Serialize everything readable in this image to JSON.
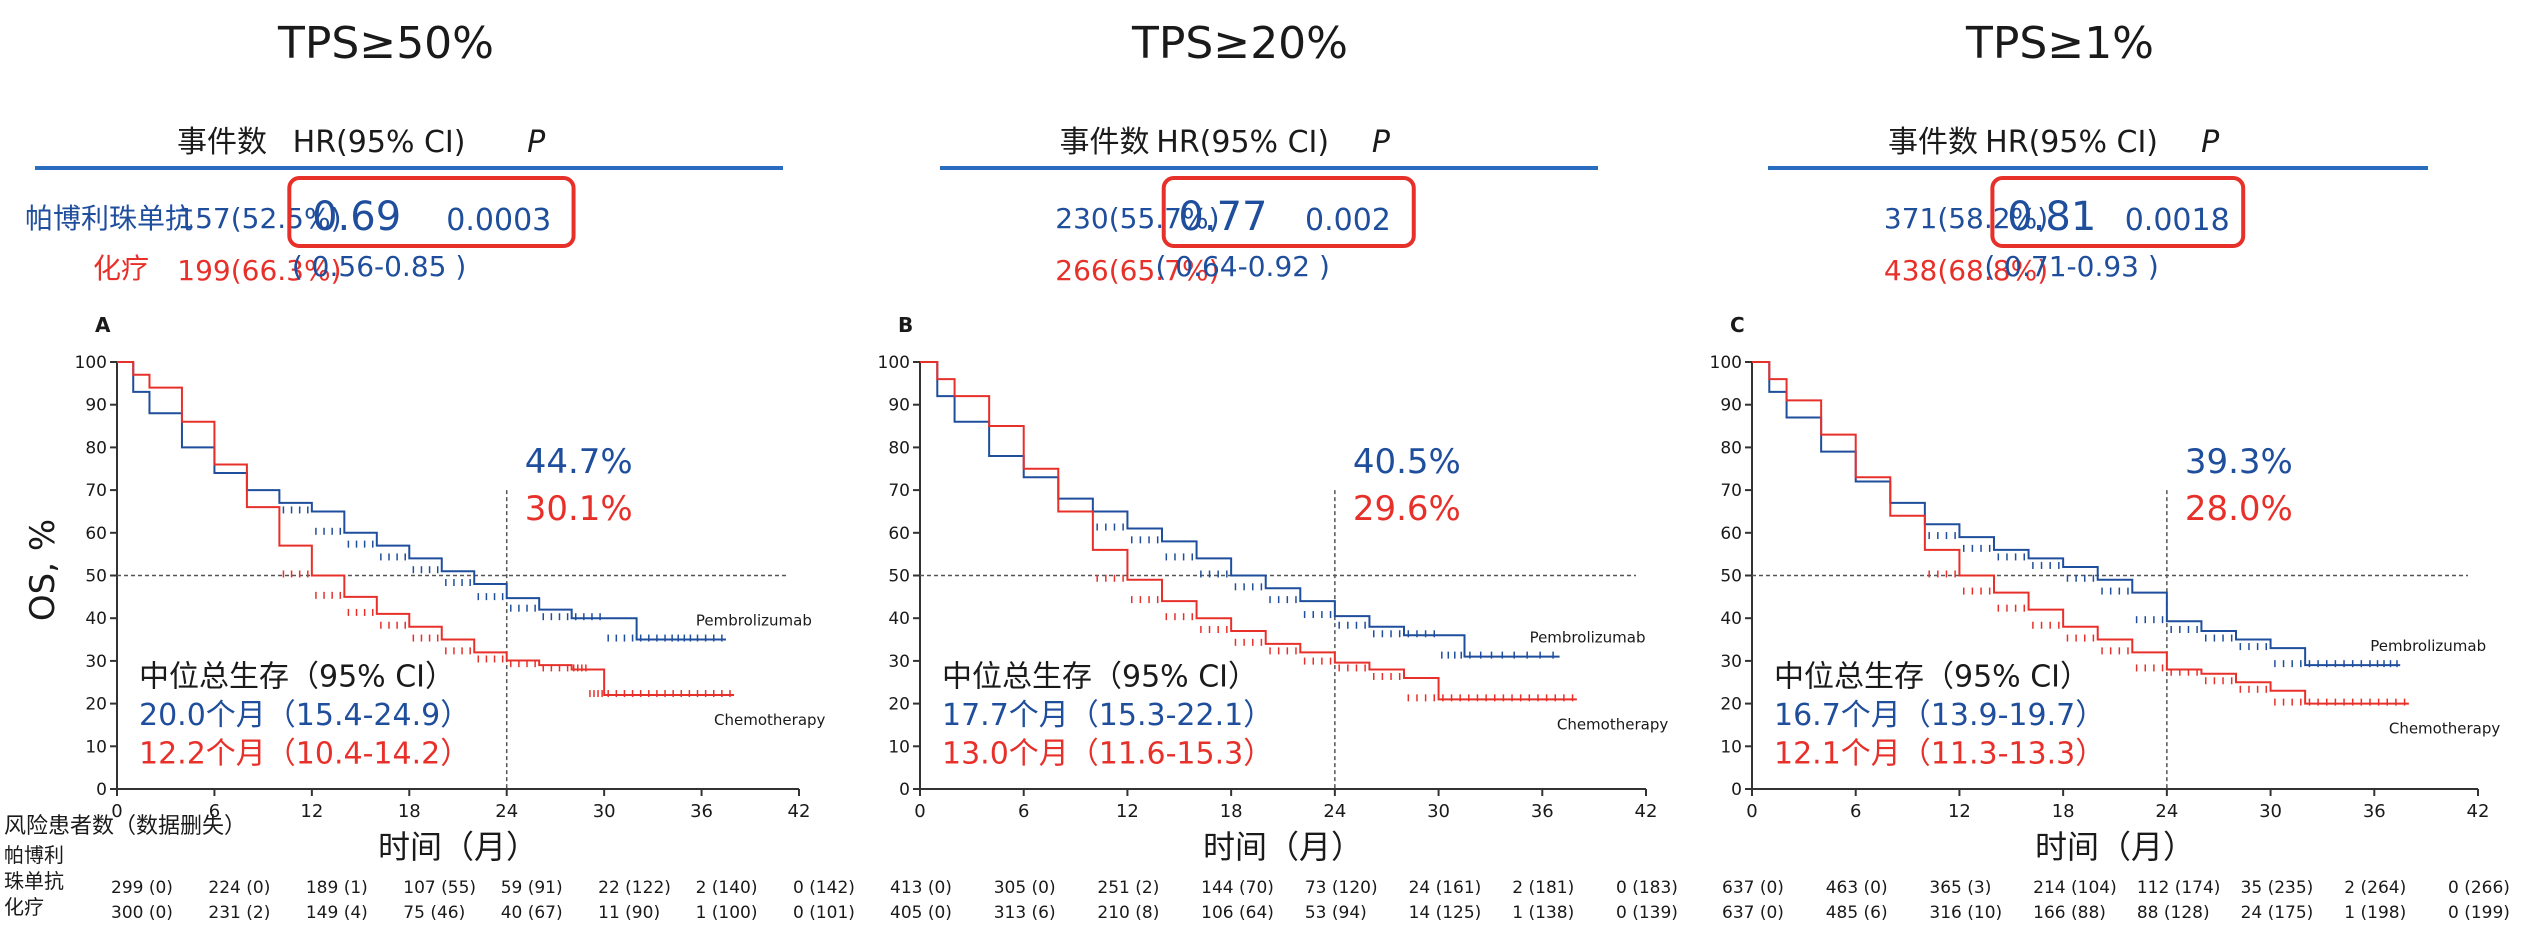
{
  "colors": {
    "pembro": "#1f4e9c",
    "chemo": "#e8302a",
    "rule": "#2a6cc0",
    "box": "#e8302a",
    "axis": "#333333"
  },
  "header_labels": {
    "events": "事件数",
    "hr": "HR(95% CI)",
    "p": "P"
  },
  "risk_table": {
    "title": "风险患者数（数据删失）",
    "pembro_label": [
      "帕博利",
      "珠单抗"
    ],
    "chemo_label": "化疗"
  },
  "axis_labels": {
    "y": "OS, %",
    "x": "时间（月）"
  },
  "panels": [
    {
      "title": "TPS≥50%",
      "letter": "A",
      "row_labels": {
        "pembro": "帕博利珠单抗",
        "chemo": "化疗"
      },
      "pembro_events": "157(52.5%)",
      "chemo_events": "199(66.3%)",
      "hr": "0.69",
      "ci": "( 0.56-0.85 )",
      "p": "0.0003",
      "landmark_pembro": "44.7%",
      "landmark_chemo": "30.1%",
      "median_title": "中位总生存（95% CI）",
      "median_pembro": "20.0个月（15.4-24.9）",
      "median_chemo": "12.2个月（10.4-14.2）",
      "curve_label_pembro": "Pembrolizumab",
      "curve_label_chemo": "Chemotherapy",
      "risk_pembro": [
        "299 (0)",
        "224 (0)",
        "189 (1)",
        "107 (55)",
        "59 (91)",
        "22 (122)",
        "2 (140)",
        "0 (142)"
      ],
      "risk_chemo": [
        "300 (0)",
        "231 (2)",
        "149 (4)",
        "75 (46)",
        "40 (67)",
        "11 (90)",
        "1 (100)",
        "0 (101)"
      ]
    },
    {
      "title": "TPS≥20%",
      "letter": "B",
      "row_labels": {
        "pembro": "",
        "chemo": ""
      },
      "pembro_events": "230(55.7%)",
      "chemo_events": "266(65.7%)",
      "hr": "0.77",
      "ci": "( 0.64-0.92 )",
      "p": "0.002",
      "landmark_pembro": "40.5%",
      "landmark_chemo": "29.6%",
      "median_title": "中位总生存（95% CI）",
      "median_pembro": "17.7个月（15.3-22.1）",
      "median_chemo": "13.0个月（11.6-15.3）",
      "curve_label_pembro": "Pembrolizumab",
      "curve_label_chemo": "Chemotherapy",
      "risk_pembro": [
        "413 (0)",
        "305 (0)",
        "251 (2)",
        "144 (70)",
        "73 (120)",
        "24 (161)",
        "2 (181)",
        "0 (183)"
      ],
      "risk_chemo": [
        "405 (0)",
        "313 (6)",
        "210 (8)",
        "106 (64)",
        "53 (94)",
        "14 (125)",
        "1 (138)",
        "0 (139)"
      ]
    },
    {
      "title": "TPS≥1%",
      "letter": "C",
      "row_labels": {
        "pembro": "",
        "chemo": ""
      },
      "pembro_events": "371(58.2%)",
      "chemo_events": "438(68.8%)",
      "hr": "0.81",
      "ci": "( 0.71-0.93 )",
      "p": "0.0018",
      "landmark_pembro": "39.3%",
      "landmark_chemo": "28.0%",
      "median_title": "中位总生存（95% CI）",
      "median_pembro": "16.7个月（13.9-19.7）",
      "median_chemo": "12.1个月（11.3-13.3）",
      "curve_label_pembro": "Pembrolizumab",
      "curve_label_chemo": "Chemotherapy",
      "risk_pembro": [
        "637 (0)",
        "463 (0)",
        "365 (3)",
        "214 (104)",
        "112 (174)",
        "35 (235)",
        "2 (264)",
        "0 (266)"
      ],
      "risk_chemo": [
        "637 (0)",
        "485 (6)",
        "316 (10)",
        "166 (88)",
        "88 (128)",
        "24 (175)",
        "1 (198)",
        "0 (199)"
      ]
    }
  ],
  "chart_data": [
    {
      "type": "line",
      "title": "TPS≥50%",
      "ylabel": "OS, %",
      "xlabel": "时间（月）",
      "xlim": [
        0,
        42
      ],
      "ylim": [
        0,
        100
      ],
      "xticks": [
        0,
        6,
        12,
        18,
        24,
        30,
        36,
        42
      ],
      "yticks": [
        0,
        10,
        20,
        30,
        40,
        50,
        60,
        70,
        80,
        90,
        100
      ],
      "grid": false,
      "series": [
        {
          "name": "Pembrolizumab",
          "x": [
            0,
            1,
            2,
            4,
            6,
            8,
            10,
            12,
            14,
            16,
            18,
            20,
            22,
            24,
            26,
            28,
            30,
            32,
            34,
            35.5,
            37.5
          ],
          "y": [
            100,
            93,
            88,
            80,
            74,
            70,
            67,
            65,
            60,
            57,
            54,
            51,
            48,
            44.7,
            42,
            40,
            40,
            35,
            35,
            35,
            35
          ]
        },
        {
          "name": "Chemotherapy",
          "x": [
            0,
            1,
            2,
            4,
            6,
            8,
            10,
            12,
            14,
            16,
            18,
            20,
            22,
            24,
            26,
            28,
            29,
            30,
            32,
            34,
            36,
            38
          ],
          "y": [
            100,
            97,
            94,
            86,
            76,
            66,
            57,
            50,
            45,
            41,
            38,
            35,
            32,
            30.1,
            29,
            28,
            28,
            22,
            22,
            22,
            22,
            22
          ]
        }
      ]
    },
    {
      "type": "line",
      "title": "TPS≥20%",
      "ylabel": "OS, %",
      "xlabel": "时间（月）",
      "xlim": [
        0,
        42
      ],
      "ylim": [
        0,
        100
      ],
      "xticks": [
        0,
        6,
        12,
        18,
        24,
        30,
        36,
        42
      ],
      "yticks": [
        0,
        10,
        20,
        30,
        40,
        50,
        60,
        70,
        80,
        90,
        100
      ],
      "grid": false,
      "series": [
        {
          "name": "Pembrolizumab",
          "x": [
            0,
            1,
            2,
            4,
            6,
            8,
            10,
            12,
            14,
            16,
            18,
            20,
            22,
            24,
            26,
            28,
            30,
            31.5,
            34,
            37
          ],
          "y": [
            100,
            92,
            86,
            78,
            73,
            68,
            65,
            61,
            58,
            54,
            50,
            47,
            44,
            40.5,
            38,
            36,
            36,
            31,
            31,
            31
          ]
        },
        {
          "name": "Chemotherapy",
          "x": [
            0,
            1,
            2,
            4,
            6,
            8,
            10,
            12,
            14,
            16,
            18,
            20,
            22,
            24,
            26,
            28,
            30,
            32,
            34,
            36,
            38
          ],
          "y": [
            100,
            96,
            92,
            85,
            75,
            65,
            56,
            49,
            44,
            40,
            37,
            34,
            32,
            29.6,
            28,
            26,
            21,
            21,
            21,
            21,
            21
          ]
        }
      ]
    },
    {
      "type": "line",
      "title": "TPS≥1%",
      "ylabel": "OS, %",
      "xlabel": "时间（月）",
      "xlim": [
        0,
        42
      ],
      "ylim": [
        0,
        100
      ],
      "xticks": [
        0,
        6,
        12,
        18,
        24,
        30,
        36,
        42
      ],
      "yticks": [
        0,
        10,
        20,
        30,
        40,
        50,
        60,
        70,
        80,
        90,
        100
      ],
      "grid": false,
      "series": [
        {
          "name": "Pembrolizumab",
          "x": [
            0,
            1,
            2,
            4,
            6,
            8,
            10,
            12,
            14,
            16,
            18,
            20,
            22,
            24,
            26,
            28,
            30,
            32,
            34,
            36,
            37.5
          ],
          "y": [
            100,
            93,
            87,
            79,
            72,
            67,
            62,
            59,
            56,
            54,
            52,
            49,
            46,
            39.3,
            37,
            35,
            33,
            29,
            29,
            29,
            29
          ]
        },
        {
          "name": "Chemotherapy",
          "x": [
            0,
            1,
            2,
            4,
            6,
            8,
            10,
            12,
            14,
            16,
            18,
            20,
            22,
            24,
            26,
            28,
            30,
            32,
            34,
            36,
            38
          ],
          "y": [
            100,
            96,
            91,
            83,
            73,
            64,
            56,
            50,
            46,
            42,
            38,
            35,
            32,
            28.0,
            27,
            25,
            23,
            20,
            20,
            20,
            20
          ]
        }
      ]
    }
  ]
}
